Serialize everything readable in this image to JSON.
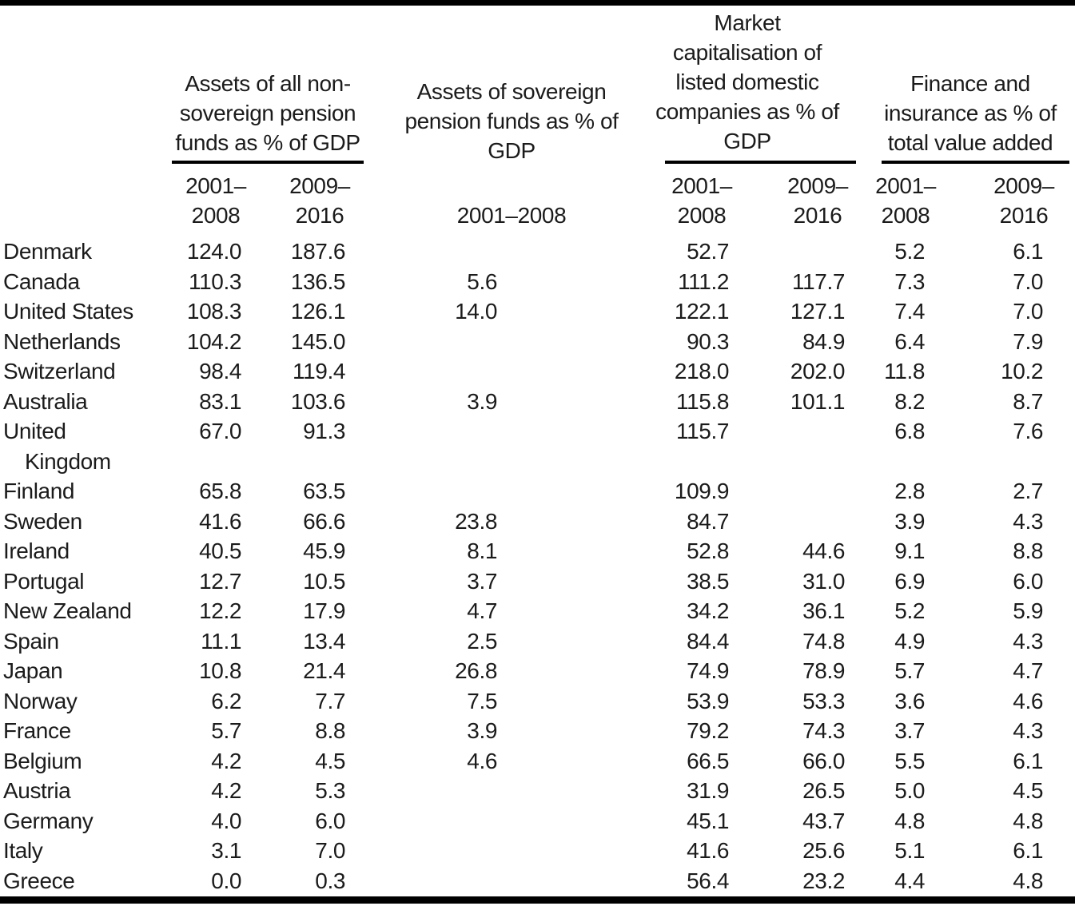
{
  "table": {
    "groups": [
      {
        "title": "Assets of all non-sovereign pension funds as % of GDP",
        "title_lines": [
          "Assets of all non-",
          "sovereign pension",
          "funds as % of GDP"
        ],
        "underlined": true,
        "subcolumns": [
          [
            "2001–",
            "2008"
          ],
          [
            "2009–",
            "2016"
          ]
        ]
      },
      {
        "title": "Assets of sovereign pension funds as % of GDP",
        "title_lines": [
          "Assets of sovereign",
          "pension funds as % of",
          "GDP"
        ],
        "underlined": false,
        "subcolumns": [
          [
            "2001–2008"
          ]
        ]
      },
      {
        "title": "Market capitalisation of listed domestic companies as % of GDP",
        "title_lines": [
          "Market",
          "capitalisation of",
          "listed domestic",
          "companies as % of",
          "GDP"
        ],
        "underlined": true,
        "subcolumns": [
          [
            "2001–",
            "2008"
          ],
          [
            "2009–",
            "2016"
          ]
        ]
      },
      {
        "title": "Finance and insurance as % of total value added",
        "title_lines": [
          "Finance and",
          "insurance as % of",
          "total value added"
        ],
        "underlined": true,
        "subcolumns": [
          [
            "2001–",
            "2008"
          ],
          [
            "2009–",
            "2016"
          ]
        ]
      }
    ],
    "rows": [
      {
        "country": "Denmark",
        "values": [
          "124.0",
          "187.6",
          "",
          "52.7",
          "",
          "5.2",
          "6.1"
        ]
      },
      {
        "country": "Canada",
        "values": [
          "110.3",
          "136.5",
          "5.6",
          "111.2",
          "117.7",
          "7.3",
          "7.0"
        ]
      },
      {
        "country": "United States",
        "values": [
          "108.3",
          "126.1",
          "14.0",
          "122.1",
          "127.1",
          "7.4",
          "7.0"
        ]
      },
      {
        "country": "Netherlands",
        "values": [
          "104.2",
          "145.0",
          "",
          "90.3",
          "84.9",
          "6.4",
          "7.9"
        ]
      },
      {
        "country": "Switzerland",
        "values": [
          "98.4",
          "119.4",
          "",
          "218.0",
          "202.0",
          "11.8",
          "10.2"
        ]
      },
      {
        "country": "Australia",
        "values": [
          "83.1",
          "103.6",
          "3.9",
          "115.8",
          "101.1",
          "8.2",
          "8.7"
        ]
      },
      {
        "country": "United Kingdom",
        "country_lines": [
          "United",
          "Kingdom"
        ],
        "values": [
          "67.0",
          "91.3",
          "",
          "115.7",
          "",
          "6.8",
          "7.6"
        ]
      },
      {
        "country": "Finland",
        "values": [
          "65.8",
          "63.5",
          "",
          "109.9",
          "",
          "2.8",
          "2.7"
        ]
      },
      {
        "country": "Sweden",
        "values": [
          "41.6",
          "66.6",
          "23.8",
          "84.7",
          "",
          "3.9",
          "4.3"
        ]
      },
      {
        "country": "Ireland",
        "values": [
          "40.5",
          "45.9",
          "8.1",
          "52.8",
          "44.6",
          "9.1",
          "8.8"
        ]
      },
      {
        "country": "Portugal",
        "values": [
          "12.7",
          "10.5",
          "3.7",
          "38.5",
          "31.0",
          "6.9",
          "6.0"
        ]
      },
      {
        "country": "New Zealand",
        "values": [
          "12.2",
          "17.9",
          "4.7",
          "34.2",
          "36.1",
          "5.2",
          "5.9"
        ]
      },
      {
        "country": "Spain",
        "values": [
          "11.1",
          "13.4",
          "2.5",
          "84.4",
          "74.8",
          "4.9",
          "4.3"
        ]
      },
      {
        "country": "Japan",
        "values": [
          "10.8",
          "21.4",
          "26.8",
          "74.9",
          "78.9",
          "5.7",
          "4.7"
        ]
      },
      {
        "country": "Norway",
        "values": [
          "6.2",
          "7.7",
          "7.5",
          "53.9",
          "53.3",
          "3.6",
          "4.6"
        ]
      },
      {
        "country": "France",
        "values": [
          "5.7",
          "8.8",
          "3.9",
          "79.2",
          "74.3",
          "3.7",
          "4.3"
        ]
      },
      {
        "country": "Belgium",
        "values": [
          "4.2",
          "4.5",
          "4.6",
          "66.5",
          "66.0",
          "5.5",
          "6.1"
        ]
      },
      {
        "country": "Austria",
        "values": [
          "4.2",
          "5.3",
          "",
          "31.9",
          "26.5",
          "5.0",
          "4.5"
        ]
      },
      {
        "country": "Germany",
        "values": [
          "4.0",
          "6.0",
          "",
          "45.1",
          "43.7",
          "4.8",
          "4.8"
        ]
      },
      {
        "country": "Italy",
        "values": [
          "3.1",
          "7.0",
          "",
          "41.6",
          "25.6",
          "5.1",
          "6.1"
        ]
      },
      {
        "country": "Greece",
        "values": [
          "0.0",
          "0.3",
          "",
          "56.4",
          "23.2",
          "4.4",
          "4.8"
        ]
      }
    ]
  }
}
